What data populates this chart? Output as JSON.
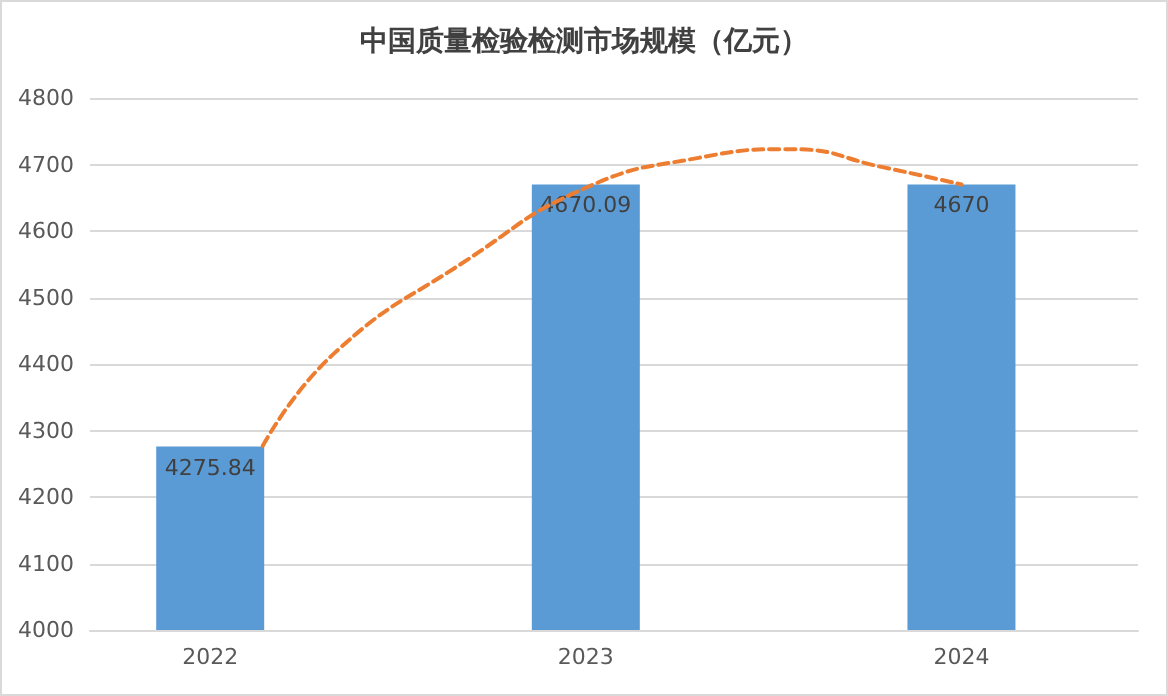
{
  "chart_data": {
    "type": "bar",
    "title": "中国质量检验检测市场规模（亿元）",
    "x": [
      2022,
      2023,
      2024
    ],
    "series": [
      {
        "color": "#5b9bd5",
        "values": [
          4275.84,
          4670.09,
          4670
        ],
        "value_labels": [
          "4275.84",
          "4670.09",
          "4670"
        ]
      },
      {
        "type": "line",
        "color": "#ed7d31",
        "x": [
          2022.14,
          2022.33,
          2022.68,
          2023,
          2023.3,
          2023.55,
          2023.79,
          2024
        ],
        "values": [
          4277,
          4416,
          4555,
          4665,
          4710,
          4723,
          4696,
          4670
        ],
        "line_style": "dashed",
        "marker": "none"
      }
    ],
    "xlim": [
      2021.68,
      2024.47
    ],
    "xticks": [
      2022,
      2023,
      2024
    ],
    "ylim": [
      4000,
      4800
    ],
    "yticks": [
      4000,
      4100,
      4200,
      4300,
      4400,
      4500,
      4600,
      4700,
      4800
    ],
    "grid": "y"
  }
}
